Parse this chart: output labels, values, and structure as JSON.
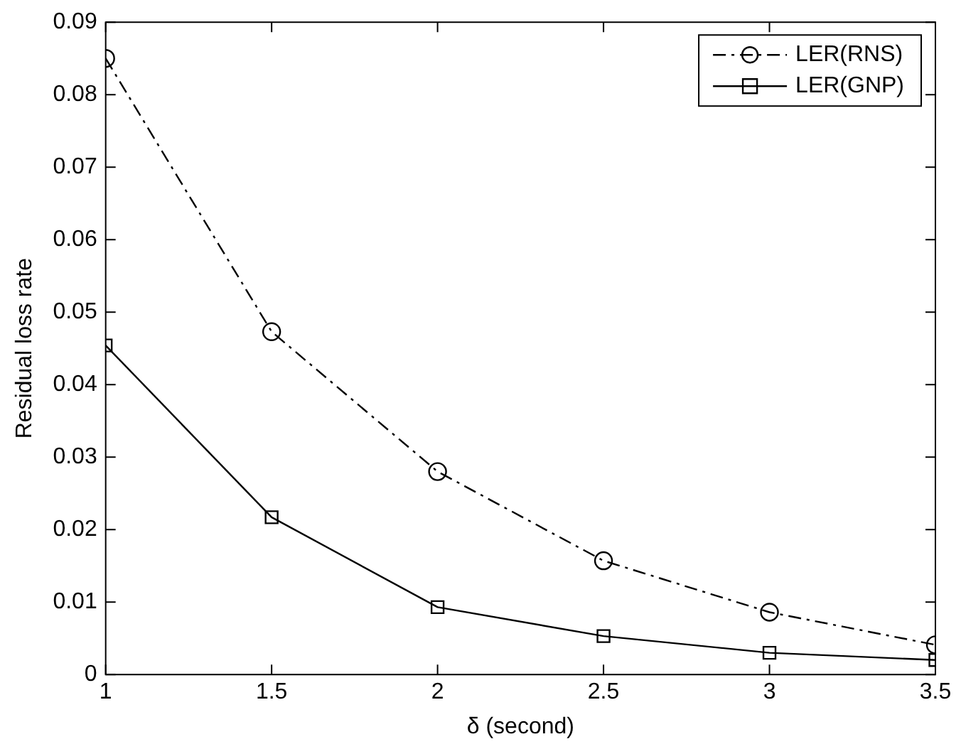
{
  "chart_data": {
    "type": "line",
    "xlabel": "δ (second)",
    "ylabel": "Residual loss rate",
    "x": [
      1,
      1.5,
      2,
      2.5,
      3,
      3.5
    ],
    "series": [
      {
        "name": "LER(RNS)",
        "color": "#000000",
        "marker": "circle",
        "line_style": "dashed",
        "values": [
          0.085,
          0.0473,
          0.028,
          0.0157,
          0.0086,
          0.0041
        ]
      },
      {
        "name": "LER(GNP)",
        "color": "#000000",
        "marker": "square",
        "line_style": "solid",
        "values": [
          0.0454,
          0.0217,
          0.0093,
          0.0053,
          0.003,
          0.002
        ]
      }
    ],
    "xlim": [
      1,
      3.5
    ],
    "xticks": [
      1,
      1.5,
      2,
      2.5,
      3,
      3.5
    ],
    "ylim": [
      0,
      0.09
    ],
    "yticks": [
      0,
      0.01,
      0.02,
      0.03,
      0.04,
      0.05,
      0.06,
      0.07,
      0.08,
      0.09
    ],
    "grid": false,
    "legend": "top right"
  }
}
